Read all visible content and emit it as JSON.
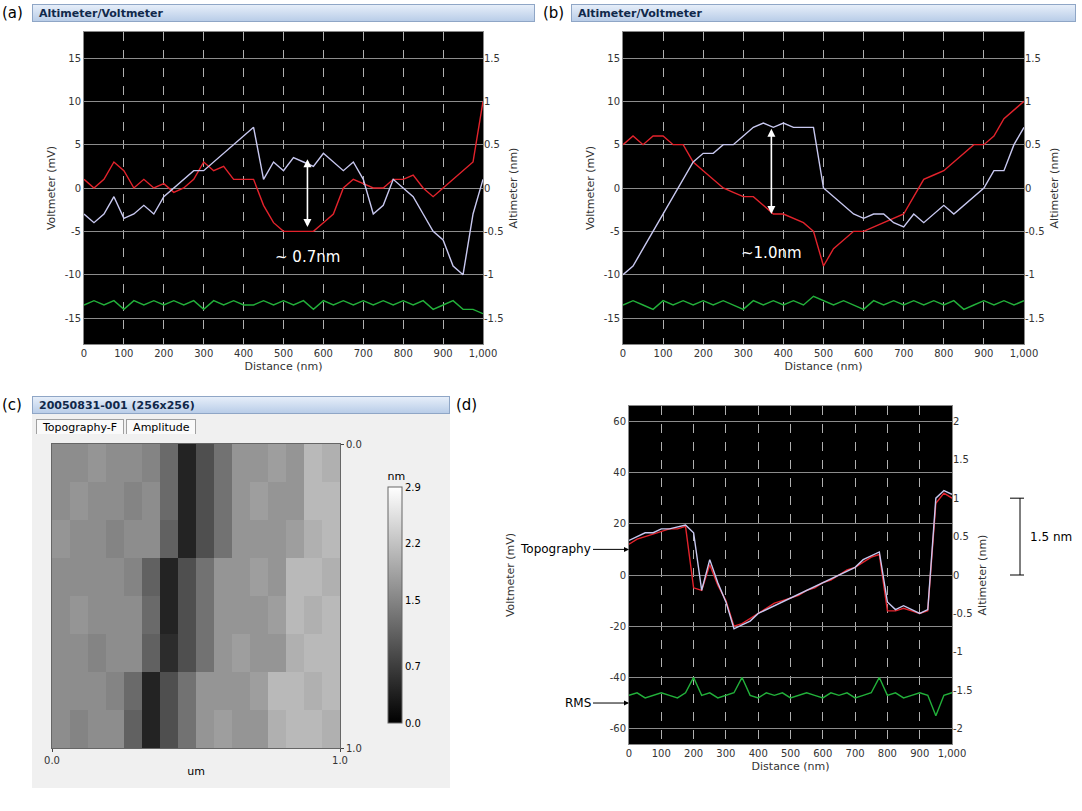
{
  "chart_data": [
    {
      "type": "line",
      "panel": "(a)",
      "window_title": "Altimeter/Voltmeter",
      "xlabel": "Distance (nm)",
      "ylabel": "Voltmeter (mV)",
      "y2label": "Altimeter (nm)",
      "x": [
        0,
        25,
        50,
        75,
        100,
        125,
        150,
        175,
        200,
        225,
        250,
        275,
        300,
        325,
        350,
        375,
        400,
        425,
        450,
        475,
        500,
        525,
        550,
        575,
        600,
        625,
        650,
        675,
        700,
        725,
        750,
        775,
        800,
        825,
        850,
        875,
        900,
        925,
        950,
        975,
        1000
      ],
      "xlim": [
        0,
        1000
      ],
      "xticks": [
        0,
        100,
        200,
        300,
        400,
        500,
        600,
        700,
        800,
        900,
        {
          "value": 1000,
          "label": "1,000"
        }
      ],
      "ylim": [
        -18,
        18
      ],
      "yticks": [
        -15,
        -10,
        -5,
        0,
        5,
        10,
        15
      ],
      "y2lim": [
        -1.8,
        1.8
      ],
      "y2ticks": [
        -1.5,
        -1,
        -0.5,
        0,
        0.5,
        1,
        1.5
      ],
      "grid": true,
      "series": [
        {
          "color": "#e3232c",
          "values": [
            1,
            0,
            1,
            3,
            2,
            0,
            1,
            0,
            0.5,
            -0.5,
            0,
            1,
            3,
            2,
            2.5,
            1,
            1,
            1,
            -2,
            -4,
            -5,
            -5,
            -5,
            -5,
            -4,
            -3,
            0,
            1,
            0.5,
            0,
            0,
            1,
            1,
            1.5,
            0,
            -1,
            0,
            1,
            2,
            3,
            10
          ]
        },
        {
          "color": "#c8c8f0",
          "axis": "y2",
          "values": [
            -0.3,
            -0.4,
            -0.3,
            -0.1,
            -0.35,
            -0.3,
            -0.2,
            -0.3,
            -0.1,
            0,
            0.1,
            0.2,
            0.2,
            0.3,
            0.4,
            0.5,
            0.6,
            0.7,
            0.1,
            0.3,
            0.2,
            0.35,
            0.3,
            0.25,
            0.4,
            0.3,
            0.2,
            0.3,
            0.1,
            -0.3,
            -0.2,
            0.1,
            0,
            -0.1,
            -0.3,
            -0.5,
            -0.6,
            -0.9,
            -1,
            -0.3,
            0.1
          ]
        },
        {
          "color": "#22b03a",
          "values": [
            -13.5,
            -13,
            -13.5,
            -13,
            -14,
            -13,
            -13.5,
            -13,
            -13.5,
            -13,
            -13.5,
            -13,
            -14,
            -13,
            -13.5,
            -13,
            -13.5,
            -13.5,
            -13,
            -13.5,
            -13,
            -13.5,
            -13,
            -14,
            -13,
            -13.5,
            -13,
            -13.5,
            -13,
            -13.5,
            -13,
            -13.5,
            -13,
            -13.5,
            -13,
            -14,
            -13.5,
            -13,
            -14,
            -14,
            -14.5
          ]
        }
      ],
      "arrows": [
        {
          "x": 560,
          "from": 3.5,
          "to": -4.5
        }
      ],
      "annotations": [
        {
          "text": "~ 0.7nm",
          "x": 560,
          "y": -8
        }
      ]
    },
    {
      "type": "line",
      "panel": "(b)",
      "window_title": "Altimeter/Voltmeter",
      "xlabel": "Distance (nm)",
      "ylabel": "Voltmeter (mV)",
      "y2label": "Altimeter (nm)",
      "x": [
        0,
        25,
        50,
        75,
        100,
        125,
        150,
        175,
        200,
        225,
        250,
        275,
        300,
        325,
        350,
        375,
        400,
        425,
        450,
        475,
        500,
        525,
        550,
        575,
        600,
        625,
        650,
        675,
        700,
        725,
        750,
        775,
        800,
        825,
        850,
        875,
        900,
        925,
        950,
        975,
        1000
      ],
      "xlim": [
        0,
        1000
      ],
      "xticks": [
        0,
        100,
        200,
        300,
        400,
        500,
        600,
        700,
        800,
        900,
        {
          "value": 1000,
          "label": "1,000"
        }
      ],
      "ylim": [
        -18,
        18
      ],
      "yticks": [
        -15,
        -10,
        -5,
        0,
        5,
        10,
        15
      ],
      "y2lim": [
        -1.8,
        1.8
      ],
      "y2ticks": [
        -1.5,
        -1,
        -0.5,
        0,
        0.5,
        1,
        1.5
      ],
      "grid": true,
      "series": [
        {
          "color": "#e3232c",
          "values": [
            5,
            6,
            5,
            6,
            6,
            5,
            5,
            3,
            2,
            1,
            0,
            -0.5,
            -1,
            -1,
            -2,
            -3,
            -3,
            -3.5,
            -4,
            -5,
            -9,
            -7,
            -6,
            -5,
            -5,
            -4.5,
            -4,
            -3.5,
            -3,
            -1,
            1,
            1.5,
            2,
            3,
            4,
            5,
            5,
            6,
            8,
            9,
            10
          ]
        },
        {
          "color": "#c8c8f0",
          "axis": "y2",
          "values": [
            -1,
            -0.9,
            -0.7,
            -0.5,
            -0.3,
            -0.1,
            0.1,
            0.3,
            0.4,
            0.4,
            0.5,
            0.5,
            0.6,
            0.7,
            0.75,
            0.7,
            0.75,
            0.7,
            0.7,
            0.7,
            0,
            -0.1,
            -0.2,
            -0.3,
            -0.35,
            -0.3,
            -0.3,
            -0.4,
            -0.45,
            -0.3,
            -0.4,
            -0.3,
            -0.2,
            -0.3,
            -0.2,
            -0.1,
            0,
            0.2,
            0.2,
            0.5,
            0.7
          ]
        },
        {
          "color": "#22b03a",
          "values": [
            -13.5,
            -13,
            -13.5,
            -14,
            -13,
            -13.5,
            -13,
            -13.5,
            -13,
            -13.5,
            -13,
            -13.5,
            -14,
            -13,
            -13.5,
            -13,
            -13.5,
            -13,
            -13.5,
            -12.5,
            -13,
            -13.5,
            -13,
            -13.5,
            -14,
            -13,
            -13.5,
            -13,
            -13.5,
            -13,
            -13.5,
            -13,
            -13.5,
            -13,
            -14,
            -13.5,
            -13,
            -13.5,
            -13,
            -13.5,
            -13
          ]
        }
      ],
      "arrows": [
        {
          "x": 370,
          "from": 7,
          "to": -3
        }
      ],
      "annotations": [
        {
          "text": "~1.0nm",
          "x": 370,
          "y": -7.5
        }
      ]
    },
    {
      "type": "heatmap",
      "panel": "(c)",
      "window_title": "20050831-001 (256x256)",
      "tabs": [
        "Topography-F",
        "Amplitude"
      ],
      "xlabel": "um",
      "x": [
        0.03125,
        0.09375,
        0.15625,
        0.21875,
        0.28125,
        0.34375,
        0.40625,
        0.46875,
        0.53125,
        0.59375,
        0.65625,
        0.71875,
        0.78125,
        0.84375,
        0.90625,
        0.96875
      ],
      "y": [
        0.0625,
        0.1875,
        0.3125,
        0.4375,
        0.5625,
        0.6875,
        0.8125,
        0.9375
      ],
      "z": [
        [
          1.6,
          1.6,
          1.7,
          1.6,
          1.6,
          1.5,
          1.2,
          0.4,
          0.9,
          1.3,
          1.7,
          1.7,
          1.8,
          1.7,
          2.1,
          2.0
        ],
        [
          1.6,
          1.7,
          1.6,
          1.6,
          1.5,
          1.6,
          1.2,
          0.4,
          0.9,
          1.3,
          1.7,
          1.8,
          1.7,
          1.7,
          2.1,
          2.1
        ],
        [
          1.7,
          1.6,
          1.6,
          1.5,
          1.6,
          1.6,
          1.1,
          0.4,
          0.9,
          1.3,
          1.7,
          1.7,
          1.7,
          1.8,
          2.0,
          2.1
        ],
        [
          1.6,
          1.6,
          1.6,
          1.6,
          1.5,
          1.1,
          0.4,
          0.9,
          1.3,
          1.7,
          1.7,
          1.8,
          1.7,
          2.1,
          2.1,
          2.0
        ],
        [
          1.6,
          1.7,
          1.6,
          1.6,
          1.6,
          1.2,
          0.4,
          0.9,
          1.3,
          1.7,
          1.7,
          1.7,
          1.8,
          2.1,
          2.0,
          2.1
        ],
        [
          1.6,
          1.6,
          1.5,
          1.6,
          1.6,
          1.1,
          0.5,
          0.9,
          1.3,
          1.7,
          1.8,
          1.7,
          1.7,
          2.0,
          2.1,
          2.1
        ],
        [
          1.6,
          1.6,
          1.6,
          1.5,
          1.2,
          0.4,
          0.9,
          1.3,
          1.7,
          1.7,
          1.7,
          1.8,
          2.1,
          2.1,
          2.0,
          2.1
        ],
        [
          1.6,
          1.5,
          1.6,
          1.6,
          1.1,
          0.4,
          0.9,
          1.3,
          1.7,
          1.8,
          1.7,
          1.7,
          2.0,
          2.1,
          2.1,
          2.0
        ]
      ],
      "xlim": [
        0,
        1
      ],
      "xticks": [
        {
          "value": 0,
          "label": "0.0"
        },
        {
          "value": 1,
          "label": "1.0"
        }
      ],
      "ylim": [
        1,
        0
      ],
      "yticks": [
        {
          "value": 0,
          "label": "0.0"
        },
        {
          "value": 1,
          "label": "1.0"
        }
      ],
      "colorbar": {
        "title": "nm",
        "range": [
          0,
          2.9
        ],
        "ticks": [
          {
            "value": 0,
            "label": "0.0"
          },
          0.7,
          1.5,
          2.2,
          2.9
        ]
      }
    },
    {
      "type": "line",
      "panel": "(d)",
      "xlabel": "Distance (nm)",
      "ylabel": "Voltmeter (mV)",
      "y2label": "Altimeter (nm)",
      "x": [
        0,
        25,
        50,
        75,
        100,
        125,
        150,
        175,
        200,
        225,
        250,
        275,
        300,
        325,
        350,
        375,
        400,
        425,
        450,
        475,
        500,
        525,
        550,
        575,
        600,
        625,
        650,
        675,
        700,
        725,
        750,
        775,
        800,
        825,
        850,
        875,
        900,
        925,
        950,
        975,
        1000
      ],
      "xlim": [
        0,
        1000
      ],
      "xticks": [
        0,
        100,
        200,
        300,
        400,
        500,
        600,
        700,
        800,
        900,
        {
          "value": 1000,
          "label": "1,000"
        }
      ],
      "ylim": [
        -66,
        66
      ],
      "yticks": [
        -60,
        -40,
        -20,
        0,
        20,
        40,
        60
      ],
      "y2lim": [
        -2.2,
        2.2
      ],
      "y2ticks": [
        -2,
        -1.5,
        -1,
        -0.5,
        0,
        0.5,
        1,
        1.5,
        2
      ],
      "grid": true,
      "series": [
        {
          "color": "#e3232c",
          "values": [
            12,
            14,
            15,
            16,
            17,
            18,
            18,
            19,
            -5,
            -6,
            4,
            -4,
            -10,
            -20,
            -19,
            -17,
            -15,
            -13,
            -11,
            -10,
            -9,
            -8,
            -6,
            -5,
            -3,
            -2,
            0,
            2,
            3,
            5,
            7,
            8,
            -14,
            -14,
            -13,
            -14,
            -15,
            -14,
            28,
            32,
            30
          ]
        },
        {
          "color": "#c8c8f0",
          "axis": "y2",
          "values": [
            0.45,
            0.5,
            0.55,
            0.55,
            0.6,
            0.6,
            0.62,
            0.65,
            0.55,
            -0.2,
            0.2,
            -0.1,
            -0.35,
            -0.7,
            -0.65,
            -0.6,
            -0.5,
            -0.45,
            -0.4,
            -0.35,
            -0.3,
            -0.25,
            -0.2,
            -0.15,
            -0.1,
            -0.05,
            0,
            0.05,
            0.1,
            0.2,
            0.25,
            0.3,
            -0.35,
            -0.45,
            -0.4,
            -0.45,
            -0.5,
            -0.45,
            1.0,
            1.1,
            1.05
          ]
        },
        {
          "color": "#22b03a",
          "values": [
            -47,
            -46,
            -48,
            -47,
            -46,
            -47,
            -48,
            -46,
            -40,
            -47,
            -46,
            -48,
            -47,
            -46,
            -40,
            -47,
            -48,
            -46,
            -47,
            -46,
            -48,
            -47,
            -46,
            -47,
            -48,
            -46,
            -47,
            -46,
            -48,
            -47,
            -46,
            -40,
            -47,
            -46,
            -48,
            -47,
            -46,
            -47,
            -55,
            -47,
            -46
          ]
        }
      ],
      "callouts": [
        {
          "text": "Topography",
          "x": 0,
          "y": 10
        },
        {
          "text": "RMS",
          "x": 0,
          "y": -50
        }
      ],
      "bracket": {
        "text": "1.5 nm",
        "from": 1,
        "to": 0
      }
    }
  ]
}
